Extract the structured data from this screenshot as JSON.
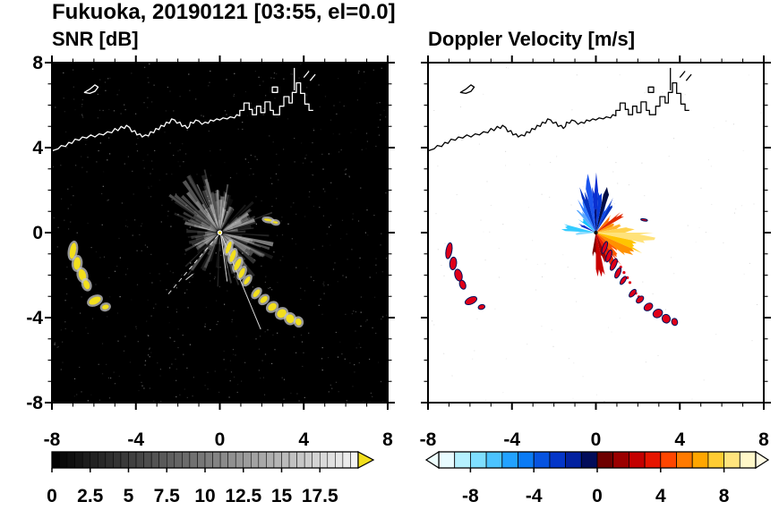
{
  "header": {
    "title": "Fukuoka, 20190121 [03:55, el=0.0]"
  },
  "axes": {
    "xlim": [
      -8,
      8
    ],
    "ylim": [
      -8,
      8
    ],
    "xtick_values": [
      -8,
      -4,
      0,
      4,
      8
    ],
    "xtick_labels": [
      "-8",
      "-4",
      "0",
      "4",
      "8"
    ],
    "ytick_values": [
      8,
      4,
      0,
      -4,
      -8
    ],
    "ytick_labels": [
      "8",
      "4",
      "0",
      "-4",
      "-8"
    ],
    "minor_step": 1
  },
  "chart_data": [
    {
      "type": "radar_ppi",
      "panel": "snr",
      "title": "SNR [dB]",
      "units": "dB",
      "background": "#000000",
      "coast_color": "#ffffff",
      "echo_color": "#f2df1d",
      "halo_color": "#c8c8c8",
      "seed": 987,
      "beams": {
        "base": 150,
        "sectors": [
          [
            100,
            165,
            30,
            1.2,
            3.1
          ],
          [
            -80,
            -10,
            30,
            1.0,
            2.8
          ],
          [
            70,
            100,
            15,
            1.0,
            2.6
          ],
          [
            0,
            40,
            12,
            0.8,
            2.0
          ],
          [
            185,
            215,
            10,
            0.6,
            1.6
          ]
        ]
      },
      "white_rays": [
        [
          -0.08,
          -0.12,
          -2.55,
          -3.0
        ],
        [
          0.1,
          -0.15,
          1.95,
          -4.55
        ],
        [
          0.05,
          -0.1,
          0.35,
          -2.3
        ],
        [
          -1.62,
          -2.22,
          -1.28,
          -1.95
        ]
      ],
      "echo_blobs": [
        [
          0.42,
          -0.7,
          0.1,
          0.3,
          20
        ],
        [
          0.62,
          -1.1,
          0.11,
          0.3,
          20
        ],
        [
          0.85,
          -1.5,
          0.12,
          0.3,
          25
        ],
        [
          1.05,
          -1.9,
          0.11,
          0.26,
          25
        ],
        [
          1.3,
          -2.25,
          0.1,
          0.22,
          35
        ],
        [
          1.75,
          -2.85,
          0.11,
          0.22,
          40
        ],
        [
          2.1,
          -3.15,
          0.13,
          0.2,
          48
        ],
        [
          2.5,
          -3.5,
          0.16,
          0.22,
          55
        ],
        [
          2.95,
          -3.8,
          0.19,
          0.23,
          60
        ],
        [
          3.35,
          -4.05,
          0.21,
          0.19,
          68
        ],
        [
          3.75,
          -4.2,
          0.17,
          0.14,
          75
        ],
        [
          -7.0,
          -0.85,
          0.14,
          0.38,
          10
        ],
        [
          -6.8,
          -1.45,
          0.16,
          0.3,
          5
        ],
        [
          -6.55,
          -2.0,
          0.17,
          0.28,
          -15
        ],
        [
          -6.35,
          -2.45,
          0.14,
          0.22,
          -20
        ],
        [
          -5.95,
          -3.2,
          0.3,
          0.16,
          -25
        ],
        [
          -5.45,
          -3.5,
          0.16,
          0.11,
          -15
        ],
        [
          2.3,
          0.6,
          0.2,
          0.06,
          10
        ],
        [
          2.65,
          0.48,
          0.13,
          0.05,
          10
        ]
      ],
      "colorbar": {
        "style": "grayscale",
        "min": 0,
        "max": 20,
        "cells": 40,
        "tick_values": [
          0,
          2.5,
          5,
          7.5,
          10,
          12.5,
          15,
          17.5
        ],
        "tick_labels": [
          "0",
          "2.5",
          "5",
          "7.5",
          "10",
          "12.5",
          "15",
          "17.5"
        ],
        "over_color": "#f2df1d"
      }
    },
    {
      "type": "radar_ppi",
      "panel": "doppler",
      "title": "Doppler Velocity [m/s]",
      "units": "m/s",
      "background": "#ffffff",
      "coast_color": "#000000",
      "echo_color": "#e00018",
      "halo_color": "#00125f",
      "seed": 321,
      "wedges": [
        [
          57,
          64,
          2.0,
          "#0131bf"
        ],
        [
          64,
          71,
          1.55,
          "#0a47e8"
        ],
        [
          71,
          79,
          2.3,
          "#020d46"
        ],
        [
          79,
          87,
          1.9,
          "#0638d6"
        ],
        [
          87,
          95,
          2.55,
          "#0a2fd0"
        ],
        [
          95,
          103,
          2.6,
          "#1b55ee"
        ],
        [
          103,
          112,
          2.15,
          "#0131bf"
        ],
        [
          112,
          121,
          1.7,
          "#2e7bff"
        ],
        [
          121,
          131,
          1.35,
          "#57a8ff"
        ],
        [
          131,
          143,
          1.05,
          "#19c4ff"
        ],
        [
          148,
          158,
          0.85,
          "#0a2fd0"
        ],
        [
          165,
          177,
          1.5,
          "#35ccff"
        ],
        [
          177,
          187,
          0.95,
          "#8fdcff"
        ],
        [
          88,
          94,
          1.35,
          "#001070"
        ],
        [
          40,
          50,
          1.0,
          "#ff7300"
        ],
        [
          30,
          40,
          1.45,
          "#e02800"
        ],
        [
          20,
          30,
          1.05,
          "#ff9100"
        ],
        [
          10,
          20,
          1.25,
          "#ffb52e"
        ],
        [
          0,
          10,
          1.85,
          "#ffd24d"
        ],
        [
          -12,
          0,
          2.55,
          "#ffe27a"
        ],
        [
          -24,
          -12,
          2.25,
          "#ffc400"
        ],
        [
          -38,
          -24,
          1.9,
          "#ff9100"
        ],
        [
          -52,
          -38,
          1.45,
          "#ff5a00"
        ],
        [
          -66,
          -52,
          1.8,
          "#ee2200"
        ],
        [
          -78,
          -66,
          1.5,
          "#a30000"
        ],
        [
          -90,
          -78,
          2.15,
          "#c90000"
        ],
        [
          -100,
          -90,
          1.2,
          "#7a0000"
        ]
      ],
      "speckles": [
        [
          1.0,
          -1.35
        ],
        [
          1.18,
          -1.62
        ],
        [
          1.34,
          -1.88
        ],
        [
          1.5,
          -2.12
        ],
        [
          1.62,
          -2.35
        ],
        [
          1.9,
          -2.85
        ],
        [
          2.05,
          -3.02
        ]
      ],
      "echo_blobs": [
        [
          0.42,
          -0.7,
          0.1,
          0.3,
          20
        ],
        [
          0.62,
          -1.1,
          0.11,
          0.3,
          20
        ],
        [
          0.85,
          -1.5,
          0.12,
          0.3,
          25
        ],
        [
          1.05,
          -1.9,
          0.11,
          0.26,
          25
        ],
        [
          1.3,
          -2.25,
          0.1,
          0.22,
          35
        ],
        [
          1.75,
          -2.85,
          0.11,
          0.22,
          40
        ],
        [
          2.1,
          -3.15,
          0.13,
          0.2,
          48
        ],
        [
          2.5,
          -3.5,
          0.16,
          0.22,
          55
        ],
        [
          2.95,
          -3.8,
          0.19,
          0.23,
          60
        ],
        [
          3.35,
          -4.05,
          0.21,
          0.19,
          68
        ],
        [
          3.75,
          -4.2,
          0.17,
          0.14,
          75
        ],
        [
          -7.0,
          -0.85,
          0.14,
          0.38,
          10
        ],
        [
          -6.8,
          -1.45,
          0.16,
          0.3,
          5
        ],
        [
          -6.55,
          -2.0,
          0.17,
          0.28,
          -15
        ],
        [
          -6.35,
          -2.45,
          0.14,
          0.22,
          -20
        ],
        [
          -5.95,
          -3.2,
          0.3,
          0.16,
          -25
        ],
        [
          -5.45,
          -3.5,
          0.16,
          0.11,
          -15
        ],
        [
          2.3,
          0.6,
          0.16,
          0.05,
          10
        ]
      ],
      "colorbar": {
        "style": "doppler",
        "min": -10,
        "max": 10,
        "cells": 20,
        "tick_values": [
          -8,
          -4,
          0,
          4,
          8
        ],
        "tick_labels": [
          "-8",
          "-4",
          "0",
          "4",
          "8"
        ],
        "cell_colors": [
          "#e8fbff",
          "#b5f1ff",
          "#7fdfff",
          "#4cc3ff",
          "#22a2ff",
          "#0b7bf4",
          "#0653e0",
          "#0436c8",
          "#0221a0",
          "#020c5a",
          "#6e0000",
          "#9b0000",
          "#c40000",
          "#e61500",
          "#ff4600",
          "#ff7a00",
          "#ffa600",
          "#ffcc33",
          "#ffe47d",
          "#fff7c8"
        ],
        "under_color": "#eeffff",
        "over_color": "#fffbe4"
      }
    }
  ],
  "coastline": {
    "main": [
      [
        -8.0,
        3.85
      ],
      [
        -7.7,
        3.95
      ],
      [
        -7.55,
        4.1
      ],
      [
        -7.35,
        4.05
      ],
      [
        -7.2,
        4.25
      ],
      [
        -7.05,
        4.2
      ],
      [
        -6.9,
        4.4
      ],
      [
        -6.7,
        4.35
      ],
      [
        -6.55,
        4.5
      ],
      [
        -6.35,
        4.45
      ],
      [
        -6.15,
        4.6
      ],
      [
        -5.95,
        4.5
      ],
      [
        -5.75,
        4.65
      ],
      [
        -5.55,
        4.6
      ],
      [
        -5.35,
        4.75
      ],
      [
        -5.15,
        4.7
      ],
      [
        -5.0,
        4.9
      ],
      [
        -4.85,
        4.8
      ],
      [
        -4.7,
        5.0
      ],
      [
        -4.55,
        4.9
      ],
      [
        -4.45,
        5.05
      ],
      [
        -4.3,
        4.95
      ],
      [
        -4.2,
        4.75
      ],
      [
        -4.05,
        4.8
      ],
      [
        -3.95,
        4.6
      ],
      [
        -3.8,
        4.65
      ],
      [
        -3.7,
        4.5
      ],
      [
        -3.55,
        4.6
      ],
      [
        -3.4,
        4.55
      ],
      [
        -3.3,
        4.75
      ],
      [
        -3.15,
        4.7
      ],
      [
        -3.05,
        4.9
      ],
      [
        -2.9,
        4.85
      ],
      [
        -2.8,
        5.05
      ],
      [
        -2.65,
        5.0
      ],
      [
        -2.55,
        5.2
      ],
      [
        -2.4,
        5.15
      ],
      [
        -2.3,
        5.35
      ],
      [
        -2.15,
        5.3
      ],
      [
        -2.05,
        5.15
      ],
      [
        -1.9,
        5.2
      ],
      [
        -1.8,
        5.0
      ],
      [
        -1.65,
        5.05
      ],
      [
        -1.55,
        4.9
      ],
      [
        -1.45,
        5.0
      ],
      [
        -1.4,
        5.2
      ],
      [
        -1.25,
        5.15
      ],
      [
        -1.15,
        5.3
      ],
      [
        -1.0,
        5.25
      ],
      [
        -0.85,
        5.1
      ],
      [
        -0.7,
        5.2
      ],
      [
        -0.55,
        5.15
      ],
      [
        -0.45,
        5.3
      ],
      [
        -0.3,
        5.25
      ],
      [
        -0.15,
        5.35
      ],
      [
        0.0,
        5.3
      ],
      [
        0.15,
        5.4
      ],
      [
        0.35,
        5.35
      ],
      [
        0.5,
        5.45
      ],
      [
        0.7,
        5.4
      ],
      [
        0.8,
        5.55
      ],
      [
        0.95,
        5.5
      ],
      [
        0.95,
        5.75
      ],
      [
        1.15,
        5.75
      ],
      [
        1.15,
        6.1
      ],
      [
        1.4,
        6.1
      ],
      [
        1.4,
        5.8
      ],
      [
        1.55,
        5.8
      ],
      [
        1.55,
        5.55
      ],
      [
        1.75,
        5.55
      ],
      [
        1.75,
        5.95
      ],
      [
        1.95,
        5.95
      ],
      [
        1.95,
        5.65
      ],
      [
        2.15,
        5.65
      ],
      [
        2.15,
        6.15
      ],
      [
        2.4,
        6.15
      ],
      [
        2.4,
        5.75
      ],
      [
        2.55,
        5.75
      ],
      [
        2.55,
        5.55
      ],
      [
        2.85,
        5.55
      ],
      [
        2.85,
        5.95
      ],
      [
        3.05,
        5.95
      ],
      [
        3.05,
        6.4
      ],
      [
        3.3,
        6.4
      ],
      [
        3.3,
        6.1
      ],
      [
        3.45,
        6.1
      ],
      [
        3.45,
        6.6
      ],
      [
        3.65,
        6.6
      ],
      [
        3.65,
        7.05
      ],
      [
        3.85,
        7.05
      ],
      [
        3.85,
        6.55
      ],
      [
        4.05,
        6.55
      ],
      [
        4.05,
        6.05
      ],
      [
        4.25,
        6.05
      ],
      [
        4.25,
        5.75
      ],
      [
        4.45,
        5.75
      ]
    ],
    "islands": [
      [
        [
          -6.45,
          6.6
        ],
        [
          -6.2,
          6.75
        ],
        [
          -5.95,
          6.95
        ],
        [
          -5.8,
          6.85
        ],
        [
          -5.95,
          6.65
        ],
        [
          -6.2,
          6.55
        ]
      ],
      [
        [
          2.5,
          6.6
        ],
        [
          2.75,
          6.6
        ],
        [
          2.75,
          6.85
        ],
        [
          2.5,
          6.85
        ]
      ]
    ],
    "lines": [
      [
        [
          3.55,
          6.7
        ],
        [
          3.55,
          7.75
        ]
      ],
      [
        [
          4.0,
          7.3
        ],
        [
          4.25,
          7.6
        ]
      ],
      [
        [
          4.3,
          7.15
        ],
        [
          4.55,
          7.45
        ]
      ]
    ]
  }
}
